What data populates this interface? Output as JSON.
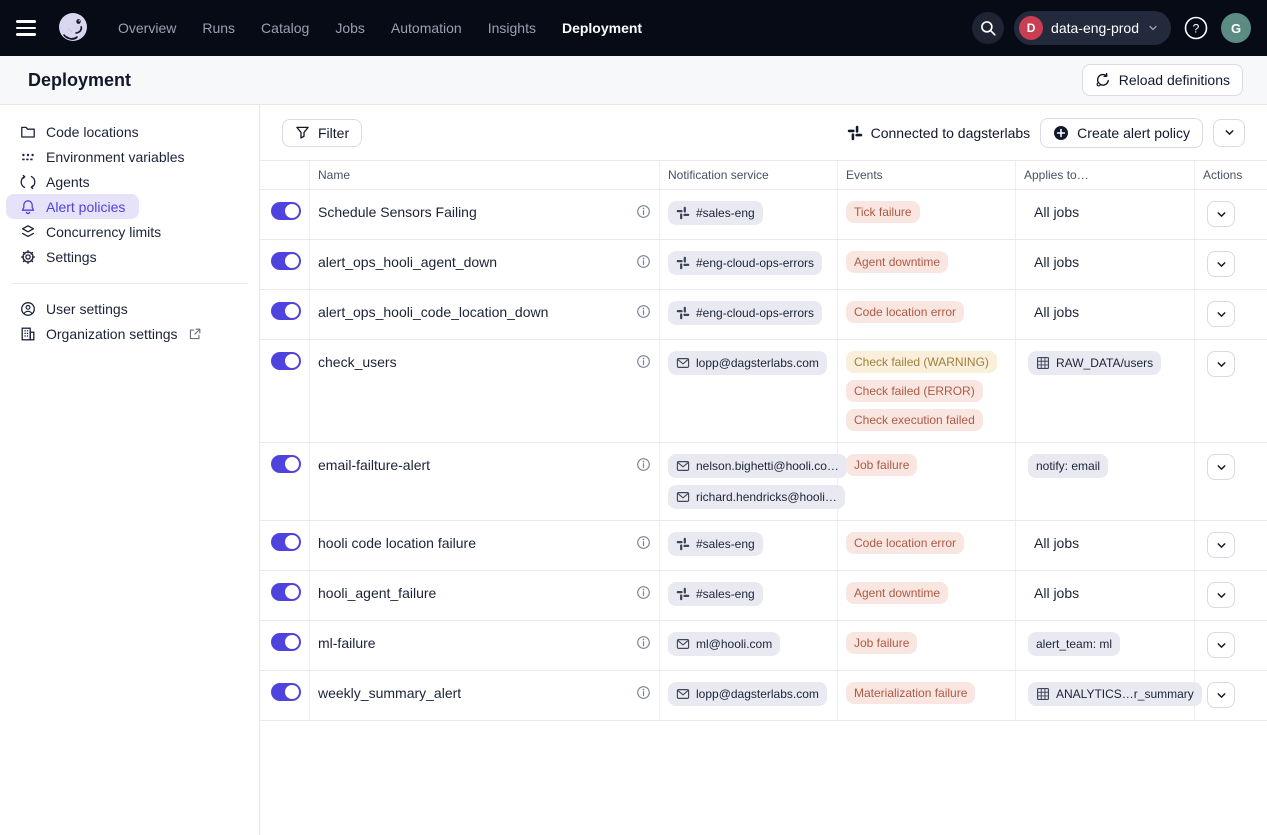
{
  "topbar": {
    "nav": [
      {
        "label": "Overview",
        "active": false
      },
      {
        "label": "Runs",
        "active": false
      },
      {
        "label": "Catalog",
        "active": false
      },
      {
        "label": "Jobs",
        "active": false
      },
      {
        "label": "Automation",
        "active": false
      },
      {
        "label": "Insights",
        "active": false
      },
      {
        "label": "Deployment",
        "active": true
      }
    ],
    "workspace": {
      "initial": "D",
      "name": "data-eng-prod"
    },
    "avatar_initial": "G"
  },
  "header": {
    "title": "Deployment",
    "reload_button": "Reload definitions"
  },
  "sidebar": {
    "main_items": [
      {
        "icon": "folder",
        "label": "Code locations",
        "selected": false
      },
      {
        "icon": "env-vars",
        "label": "Environment variables",
        "selected": false
      },
      {
        "icon": "agents",
        "label": "Agents",
        "selected": false
      },
      {
        "icon": "bell",
        "label": "Alert policies",
        "selected": true
      },
      {
        "icon": "layers",
        "label": "Concurrency limits",
        "selected": false
      },
      {
        "icon": "gear",
        "label": "Settings",
        "selected": false
      }
    ],
    "footer_items": [
      {
        "icon": "user-circle",
        "label": "User settings",
        "external": false
      },
      {
        "icon": "building",
        "label": "Organization settings",
        "external": true
      }
    ]
  },
  "toolbar": {
    "filter_label": "Filter",
    "connected_label": "Connected to dagsterlabs",
    "create_label": "Create alert policy"
  },
  "table": {
    "columns": [
      "",
      "Name",
      "Notification service",
      "Events",
      "Applies to…",
      "Actions"
    ],
    "rows": [
      {
        "enabled": true,
        "name": "Schedule Sensors Failing",
        "services": [
          {
            "type": "slack",
            "label": "#sales-eng"
          }
        ],
        "events": [
          {
            "label": "Tick failure",
            "level": "error"
          }
        ],
        "applies": {
          "type": "text",
          "label": "All jobs"
        }
      },
      {
        "enabled": true,
        "name": "alert_ops_hooli_agent_down",
        "services": [
          {
            "type": "slack",
            "label": "#eng-cloud-ops-errors"
          }
        ],
        "events": [
          {
            "label": "Agent downtime",
            "level": "error"
          }
        ],
        "applies": {
          "type": "text",
          "label": "All jobs"
        }
      },
      {
        "enabled": true,
        "name": "alert_ops_hooli_code_location_down",
        "services": [
          {
            "type": "slack",
            "label": "#eng-cloud-ops-errors"
          }
        ],
        "events": [
          {
            "label": "Code location error",
            "level": "error"
          }
        ],
        "applies": {
          "type": "text",
          "label": "All jobs"
        }
      },
      {
        "enabled": true,
        "name": "check_users",
        "services": [
          {
            "type": "email",
            "label": "lopp@dagsterlabs.com"
          }
        ],
        "events": [
          {
            "label": "Check failed (WARNING)",
            "level": "warning"
          },
          {
            "label": "Check failed (ERROR)",
            "level": "error"
          },
          {
            "label": "Check execution failed",
            "level": "error"
          }
        ],
        "applies": {
          "type": "asset",
          "label": "RAW_DATA/users"
        }
      },
      {
        "enabled": true,
        "name": "email-failture-alert",
        "services": [
          {
            "type": "email",
            "label": "nelson.bighetti@hooli.co…"
          },
          {
            "type": "email",
            "label": "richard.hendricks@hooli…"
          }
        ],
        "events": [
          {
            "label": "Job failure",
            "level": "error"
          }
        ],
        "applies": {
          "type": "tag",
          "label": "notify: email"
        }
      },
      {
        "enabled": true,
        "name": "hooli code location failure",
        "services": [
          {
            "type": "slack",
            "label": "#sales-eng"
          }
        ],
        "events": [
          {
            "label": "Code location error",
            "level": "error"
          }
        ],
        "applies": {
          "type": "text",
          "label": "All jobs"
        }
      },
      {
        "enabled": true,
        "name": "hooli_agent_failure",
        "services": [
          {
            "type": "slack",
            "label": "#sales-eng"
          }
        ],
        "events": [
          {
            "label": "Agent downtime",
            "level": "error"
          }
        ],
        "applies": {
          "type": "text",
          "label": "All jobs"
        }
      },
      {
        "enabled": true,
        "name": "ml-failure",
        "services": [
          {
            "type": "email",
            "label": "ml@hooli.com"
          }
        ],
        "events": [
          {
            "label": "Job failure",
            "level": "error"
          }
        ],
        "applies": {
          "type": "tag",
          "label": "alert_team: ml"
        }
      },
      {
        "enabled": true,
        "name": "weekly_summary_alert",
        "services": [
          {
            "type": "email",
            "label": "lopp@dagsterlabs.com"
          }
        ],
        "events": [
          {
            "label": "Materialization failure",
            "level": "error"
          }
        ],
        "applies": {
          "type": "asset",
          "label": "ANALYTICS…r_summary"
        }
      }
    ]
  },
  "colors": {
    "accent": "#4F43DD",
    "topbar_bg": "#070B15",
    "selected_bg": "#E5E2F9",
    "badge_error_bg": "#FAE6E1",
    "badge_error_text": "#AC5A45",
    "badge_warning_bg": "#F9EFDB",
    "badge_warning_text": "#A07F3E",
    "workspace_badge_bg": "#C83E52"
  }
}
